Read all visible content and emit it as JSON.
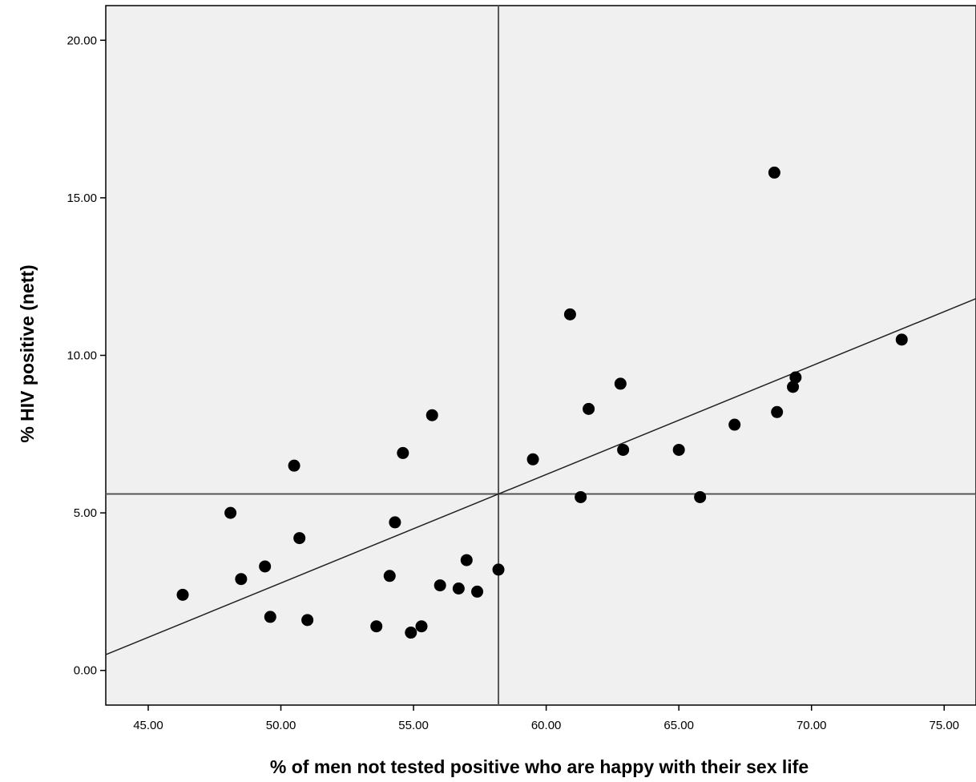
{
  "chart_data": {
    "type": "scatter",
    "title": "",
    "xlabel": "% of men not tested positive who are happy with their sex life",
    "ylabel": "% HIV positive (nett)",
    "xlim": [
      43.4,
      76.2
    ],
    "ylim": [
      -1.1,
      21.1
    ],
    "x_ticks": [
      "45.00",
      "50.00",
      "55.00",
      "60.00",
      "65.00",
      "70.00",
      "75.00"
    ],
    "y_ticks": [
      "0.00",
      "5.00",
      "10.00",
      "15.00",
      "20.00"
    ],
    "grid": false,
    "background": "#f0f0f0",
    "marker_color": "#000000",
    "reference_lines": {
      "x_mean": 58.2,
      "y_mean": 5.6
    },
    "fit_line": {
      "x": [
        43.4,
        76.2
      ],
      "y": [
        0.5,
        11.8
      ]
    },
    "points": [
      {
        "x": 46.3,
        "y": 2.4
      },
      {
        "x": 48.1,
        "y": 5.0
      },
      {
        "x": 48.5,
        "y": 2.9
      },
      {
        "x": 49.4,
        "y": 3.3
      },
      {
        "x": 49.6,
        "y": 1.7
      },
      {
        "x": 50.5,
        "y": 6.5
      },
      {
        "x": 50.7,
        "y": 4.2
      },
      {
        "x": 51.0,
        "y": 1.6
      },
      {
        "x": 53.6,
        "y": 1.4
      },
      {
        "x": 54.1,
        "y": 3.0
      },
      {
        "x": 54.3,
        "y": 4.7
      },
      {
        "x": 54.6,
        "y": 6.9
      },
      {
        "x": 54.9,
        "y": 1.2
      },
      {
        "x": 55.3,
        "y": 1.4
      },
      {
        "x": 55.7,
        "y": 8.1
      },
      {
        "x": 56.0,
        "y": 2.7
      },
      {
        "x": 56.7,
        "y": 2.6
      },
      {
        "x": 57.0,
        "y": 3.5
      },
      {
        "x": 57.4,
        "y": 2.5
      },
      {
        "x": 58.2,
        "y": 3.2
      },
      {
        "x": 59.5,
        "y": 6.7
      },
      {
        "x": 60.9,
        "y": 11.3
      },
      {
        "x": 61.3,
        "y": 5.5
      },
      {
        "x": 61.6,
        "y": 8.3
      },
      {
        "x": 62.8,
        "y": 9.1
      },
      {
        "x": 62.9,
        "y": 7.0
      },
      {
        "x": 65.0,
        "y": 7.0
      },
      {
        "x": 65.8,
        "y": 5.5
      },
      {
        "x": 67.1,
        "y": 7.8
      },
      {
        "x": 68.6,
        "y": 15.8
      },
      {
        "x": 68.7,
        "y": 8.2
      },
      {
        "x": 69.3,
        "y": 9.0
      },
      {
        "x": 69.4,
        "y": 9.3
      },
      {
        "x": 73.4,
        "y": 10.5
      }
    ]
  }
}
